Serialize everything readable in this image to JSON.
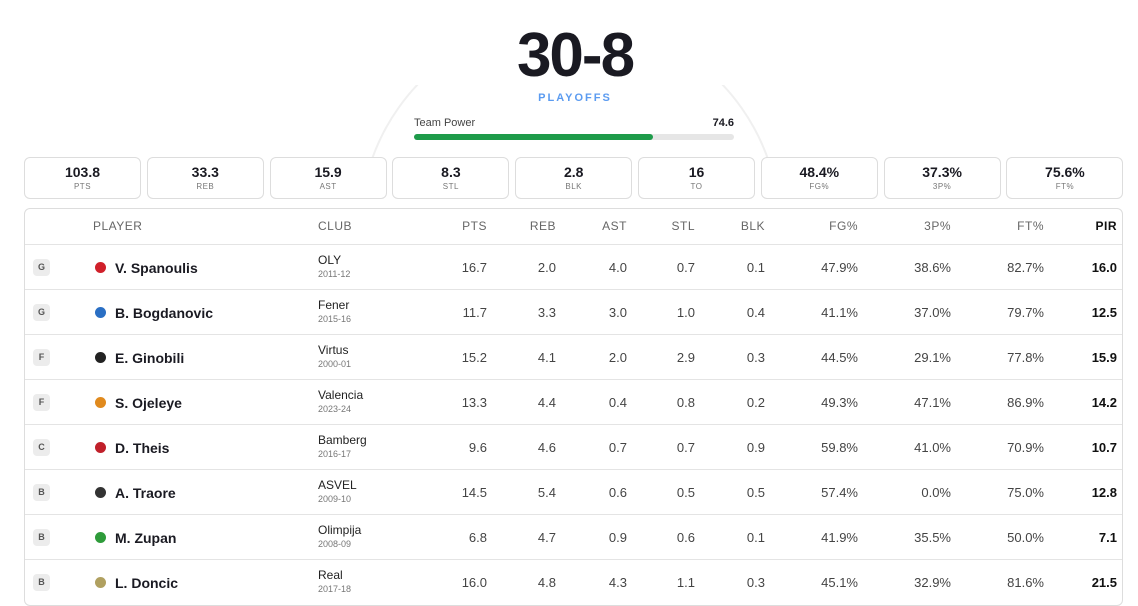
{
  "header": {
    "record": "30-8",
    "stage": "PLAYOFFS"
  },
  "team_power": {
    "label": "Team Power",
    "value": 74.6
  },
  "summary": [
    {
      "value": "103.8",
      "label": "PTS"
    },
    {
      "value": "33.3",
      "label": "REB"
    },
    {
      "value": "15.9",
      "label": "AST"
    },
    {
      "value": "8.3",
      "label": "STL"
    },
    {
      "value": "2.8",
      "label": "BLK"
    },
    {
      "value": "16",
      "label": "TO"
    },
    {
      "value": "48.4%",
      "label": "FG%"
    },
    {
      "value": "37.3%",
      "label": "3P%"
    },
    {
      "value": "75.6%",
      "label": "FT%"
    }
  ],
  "table": {
    "columns": [
      "PLAYER",
      "CLUB",
      "PTS",
      "REB",
      "AST",
      "STL",
      "BLK",
      "FG%",
      "3P%",
      "FT%",
      "PIR"
    ],
    "rows": [
      {
        "pos": "G",
        "player": "V. Spanoulis",
        "club": "OLY",
        "season": "2011-12",
        "stats": [
          "16.7",
          "2.0",
          "4.0",
          "0.7",
          "0.1",
          "47.9%",
          "38.6%",
          "82.7%",
          "16.0"
        ]
      },
      {
        "pos": "G",
        "player": "B. Bogdanovic",
        "club": "Fener",
        "season": "2015-16",
        "stats": [
          "11.7",
          "3.3",
          "3.0",
          "1.0",
          "0.4",
          "41.1%",
          "37.0%",
          "79.7%",
          "12.5"
        ]
      },
      {
        "pos": "F",
        "player": "E. Ginobili",
        "club": "Virtus",
        "season": "2000-01",
        "stats": [
          "15.2",
          "4.1",
          "2.0",
          "2.9",
          "0.3",
          "44.5%",
          "29.1%",
          "77.8%",
          "15.9"
        ]
      },
      {
        "pos": "F",
        "player": "S. Ojeleye",
        "club": "Valencia",
        "season": "2023-24",
        "stats": [
          "13.3",
          "4.4",
          "0.4",
          "0.8",
          "0.2",
          "49.3%",
          "47.1%",
          "86.9%",
          "14.2"
        ]
      },
      {
        "pos": "C",
        "player": "D. Theis",
        "club": "Bamberg",
        "season": "2016-17",
        "stats": [
          "9.6",
          "4.6",
          "0.7",
          "0.7",
          "0.9",
          "59.8%",
          "41.0%",
          "70.9%",
          "10.7"
        ]
      },
      {
        "pos": "B",
        "player": "A. Traore",
        "club": "ASVEL",
        "season": "2009-10",
        "stats": [
          "14.5",
          "5.4",
          "0.6",
          "0.5",
          "0.5",
          "57.4%",
          "0.0%",
          "75.0%",
          "12.8"
        ]
      },
      {
        "pos": "B",
        "player": "M. Zupan",
        "club": "Olimpija",
        "season": "2008-09",
        "stats": [
          "6.8",
          "4.7",
          "0.9",
          "0.6",
          "0.1",
          "41.9%",
          "35.5%",
          "50.0%",
          "7.1"
        ]
      },
      {
        "pos": "B",
        "player": "L. Doncic",
        "club": "Real",
        "season": "2017-18",
        "stats": [
          "16.0",
          "4.8",
          "4.3",
          "1.1",
          "0.3",
          "45.1%",
          "32.9%",
          "81.6%",
          "21.5"
        ]
      }
    ]
  }
}
